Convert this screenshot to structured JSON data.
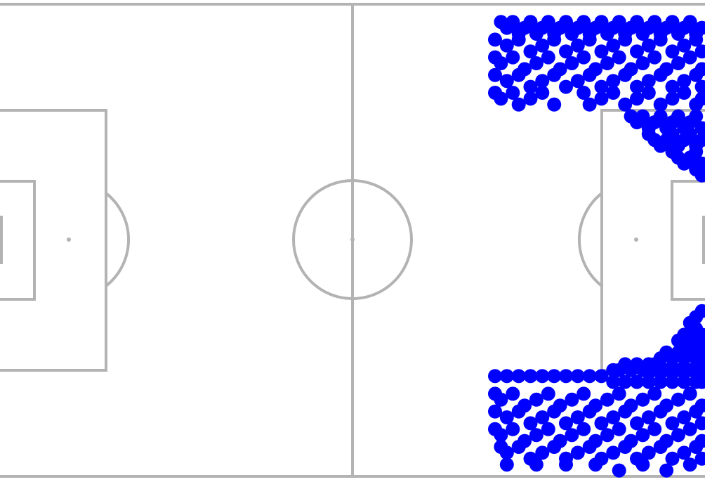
{
  "colors": {
    "background": "#ffffff",
    "pitch_lines": "#b3b3b3",
    "points": "#0000ff"
  },
  "chart_data": {
    "type": "scatter",
    "title": "",
    "xlabel": "",
    "ylabel": "",
    "pitch": {
      "type": "statsbomb",
      "length": 120,
      "width": 80
    },
    "xlim": [
      0,
      120
    ],
    "ylim": [
      0,
      80
    ],
    "grid": false,
    "series": [
      {
        "color": "#0000ff",
        "points": [
          [
            85,
            3
          ],
          [
            86,
            4
          ],
          [
            87,
            3
          ],
          [
            88,
            5
          ],
          [
            89,
            4
          ],
          [
            90,
            3
          ],
          [
            91,
            5
          ],
          [
            92,
            4
          ],
          [
            93,
            3
          ],
          [
            94,
            5
          ],
          [
            95,
            4
          ],
          [
            96,
            3
          ],
          [
            97,
            5
          ],
          [
            98,
            4
          ],
          [
            99,
            3
          ],
          [
            100,
            5
          ],
          [
            101,
            4
          ],
          [
            102,
            3
          ],
          [
            103,
            5
          ],
          [
            104,
            4
          ],
          [
            105,
            3
          ],
          [
            106,
            5
          ],
          [
            107,
            4
          ],
          [
            108,
            3
          ],
          [
            109,
            5
          ],
          [
            110,
            4
          ],
          [
            111,
            3
          ],
          [
            112,
            5
          ],
          [
            113,
            4
          ],
          [
            114,
            3
          ],
          [
            115,
            5
          ],
          [
            116,
            4
          ],
          [
            117,
            3
          ],
          [
            118,
            5
          ],
          [
            119,
            4
          ],
          [
            84,
            6
          ],
          [
            86,
            7
          ],
          [
            88,
            6
          ],
          [
            90,
            8
          ],
          [
            92,
            7
          ],
          [
            94,
            6
          ],
          [
            96,
            8
          ],
          [
            98,
            7
          ],
          [
            100,
            6
          ],
          [
            102,
            8
          ],
          [
            104,
            7
          ],
          [
            106,
            6
          ],
          [
            108,
            8
          ],
          [
            110,
            7
          ],
          [
            112,
            6
          ],
          [
            114,
            8
          ],
          [
            116,
            7
          ],
          [
            118,
            6
          ],
          [
            119,
            8
          ],
          [
            84,
            9
          ],
          [
            85,
            10
          ],
          [
            87,
            9
          ],
          [
            89,
            11
          ],
          [
            91,
            10
          ],
          [
            93,
            9
          ],
          [
            95,
            11
          ],
          [
            97,
            10
          ],
          [
            99,
            9
          ],
          [
            101,
            11
          ],
          [
            103,
            10
          ],
          [
            105,
            9
          ],
          [
            107,
            11
          ],
          [
            109,
            10
          ],
          [
            111,
            9
          ],
          [
            113,
            11
          ],
          [
            115,
            10
          ],
          [
            117,
            9
          ],
          [
            119,
            11
          ],
          [
            84,
            12
          ],
          [
            86,
            13
          ],
          [
            88,
            12
          ],
          [
            90,
            14
          ],
          [
            92,
            13
          ],
          [
            94,
            12
          ],
          [
            96,
            14
          ],
          [
            98,
            13
          ],
          [
            100,
            12
          ],
          [
            102,
            14
          ],
          [
            104,
            13
          ],
          [
            106,
            12
          ],
          [
            108,
            14
          ],
          [
            110,
            13
          ],
          [
            112,
            12
          ],
          [
            114,
            14
          ],
          [
            116,
            13
          ],
          [
            118,
            12
          ],
          [
            119,
            14
          ],
          [
            84,
            15
          ],
          [
            85,
            16
          ],
          [
            87,
            15
          ],
          [
            88,
            17
          ],
          [
            90,
            16
          ],
          [
            92,
            15
          ],
          [
            94,
            17
          ],
          [
            99,
            15
          ],
          [
            100,
            17
          ],
          [
            102,
            16
          ],
          [
            104,
            15
          ],
          [
            106,
            17
          ],
          [
            108,
            16
          ],
          [
            110,
            15
          ],
          [
            112,
            17
          ],
          [
            114,
            16
          ],
          [
            116,
            15
          ],
          [
            118,
            17
          ],
          [
            119,
            16
          ],
          [
            107,
            19
          ],
          [
            108,
            20
          ],
          [
            109,
            19
          ],
          [
            110,
            21
          ],
          [
            111,
            20
          ],
          [
            112,
            19
          ],
          [
            113,
            21
          ],
          [
            114,
            20
          ],
          [
            115,
            19
          ],
          [
            116,
            21
          ],
          [
            117,
            20
          ],
          [
            118,
            19
          ],
          [
            119,
            21
          ],
          [
            110,
            22
          ],
          [
            111,
            23
          ],
          [
            112,
            24
          ],
          [
            113,
            23
          ],
          [
            114,
            22
          ],
          [
            115,
            24
          ],
          [
            116,
            23
          ],
          [
            117,
            22
          ],
          [
            118,
            24
          ],
          [
            119,
            23
          ],
          [
            114,
            25
          ],
          [
            115,
            26
          ],
          [
            116,
            27
          ],
          [
            117,
            26
          ],
          [
            118,
            25
          ],
          [
            119,
            27
          ],
          [
            118,
            28
          ],
          [
            119,
            29
          ],
          [
            119,
            52
          ],
          [
            118,
            53
          ],
          [
            117,
            54
          ],
          [
            118,
            55
          ],
          [
            119,
            56
          ],
          [
            116,
            56
          ],
          [
            115,
            57
          ],
          [
            116,
            58
          ],
          [
            117,
            57
          ],
          [
            118,
            58
          ],
          [
            119,
            58
          ],
          [
            113,
            59
          ],
          [
            114,
            60
          ],
          [
            115,
            59
          ],
          [
            116,
            60
          ],
          [
            117,
            59
          ],
          [
            118,
            60
          ],
          [
            119,
            60
          ],
          [
            112,
            60
          ],
          [
            111,
            61
          ],
          [
            110,
            61
          ],
          [
            104,
            62
          ],
          [
            105,
            62
          ],
          [
            106,
            61
          ],
          [
            107,
            62
          ],
          [
            108,
            61
          ],
          [
            109,
            62
          ],
          [
            110,
            62
          ],
          [
            111,
            62
          ],
          [
            112,
            62
          ],
          [
            113,
            62
          ],
          [
            114,
            62
          ],
          [
            115,
            62
          ],
          [
            116,
            62
          ],
          [
            117,
            62
          ],
          [
            118,
            62
          ],
          [
            119,
            62
          ],
          [
            84,
            63
          ],
          [
            86,
            63
          ],
          [
            88,
            63
          ],
          [
            90,
            63
          ],
          [
            92,
            63
          ],
          [
            94,
            63
          ],
          [
            96,
            63
          ],
          [
            98,
            63
          ],
          [
            100,
            63
          ],
          [
            102,
            63
          ],
          [
            104,
            64
          ],
          [
            106,
            64
          ],
          [
            108,
            64
          ],
          [
            110,
            64
          ],
          [
            112,
            64
          ],
          [
            114,
            64
          ],
          [
            116,
            64
          ],
          [
            118,
            64
          ],
          [
            119,
            64
          ],
          [
            84,
            66
          ],
          [
            85,
            67
          ],
          [
            87,
            66
          ],
          [
            89,
            68
          ],
          [
            91,
            67
          ],
          [
            93,
            66
          ],
          [
            95,
            68
          ],
          [
            97,
            67
          ],
          [
            99,
            66
          ],
          [
            101,
            68
          ],
          [
            103,
            67
          ],
          [
            105,
            66
          ],
          [
            107,
            68
          ],
          [
            109,
            67
          ],
          [
            111,
            66
          ],
          [
            113,
            68
          ],
          [
            115,
            67
          ],
          [
            117,
            66
          ],
          [
            119,
            68
          ],
          [
            84,
            69
          ],
          [
            86,
            70
          ],
          [
            88,
            69
          ],
          [
            90,
            71
          ],
          [
            92,
            70
          ],
          [
            94,
            69
          ],
          [
            96,
            71
          ],
          [
            98,
            70
          ],
          [
            100,
            69
          ],
          [
            102,
            71
          ],
          [
            104,
            70
          ],
          [
            106,
            69
          ],
          [
            108,
            71
          ],
          [
            110,
            70
          ],
          [
            112,
            69
          ],
          [
            114,
            71
          ],
          [
            116,
            70
          ],
          [
            118,
            69
          ],
          [
            119,
            71
          ],
          [
            84,
            72
          ],
          [
            85,
            73
          ],
          [
            87,
            72
          ],
          [
            89,
            74
          ],
          [
            91,
            73
          ],
          [
            93,
            72
          ],
          [
            95,
            74
          ],
          [
            97,
            73
          ],
          [
            99,
            72
          ],
          [
            101,
            74
          ],
          [
            103,
            73
          ],
          [
            105,
            72
          ],
          [
            107,
            74
          ],
          [
            109,
            73
          ],
          [
            111,
            72
          ],
          [
            113,
            74
          ],
          [
            115,
            73
          ],
          [
            117,
            72
          ],
          [
            119,
            74
          ],
          [
            85,
            75
          ],
          [
            86,
            76
          ],
          [
            88,
            75
          ],
          [
            90,
            77
          ],
          [
            92,
            76
          ],
          [
            94,
            75
          ],
          [
            96,
            77
          ],
          [
            98,
            76
          ],
          [
            100,
            75
          ],
          [
            102,
            77
          ],
          [
            104,
            76
          ],
          [
            106,
            75
          ],
          [
            108,
            77
          ],
          [
            110,
            76
          ],
          [
            112,
            75
          ],
          [
            114,
            77
          ],
          [
            116,
            76
          ],
          [
            118,
            75
          ],
          [
            119,
            77
          ],
          [
            86,
            78
          ],
          [
            91,
            78
          ],
          [
            96,
            78
          ],
          [
            101,
            78
          ],
          [
            105,
            79
          ],
          [
            109,
            78
          ],
          [
            113,
            79
          ],
          [
            117,
            78
          ]
        ]
      }
    ]
  }
}
